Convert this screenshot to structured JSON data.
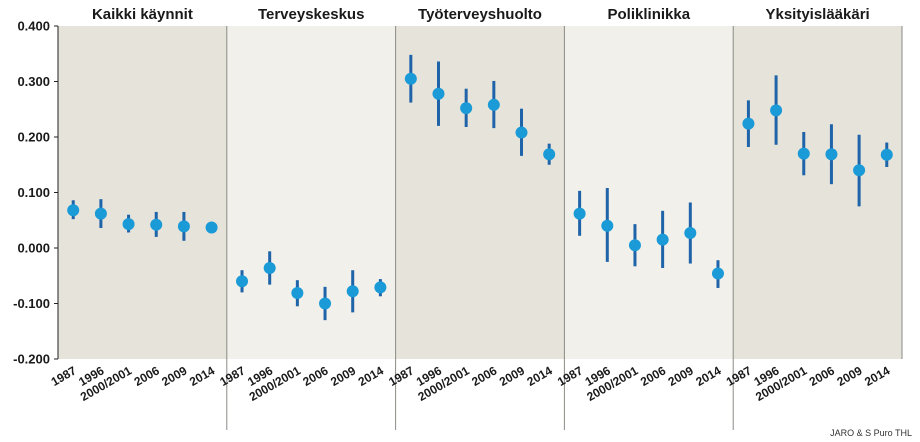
{
  "chart_data": {
    "type": "scatter",
    "subtype": "point-with-error-bars, small multiples",
    "ylim": [
      -0.2,
      0.4
    ],
    "yticks": [
      "0.400",
      "0.300",
      "0.200",
      "0.100",
      "0.000",
      "-0.100",
      "-0.200"
    ],
    "ytick_values": [
      0.4,
      0.3,
      0.2,
      0.1,
      0.0,
      -0.1,
      -0.2
    ],
    "categories": [
      "1987",
      "1996",
      "2000/2001",
      "2006",
      "2009",
      "2014"
    ],
    "grid": false,
    "panels": [
      {
        "title": "Kaikki käynnit",
        "background": "#e6e3da",
        "values": [
          0.068,
          0.062,
          0.043,
          0.042,
          0.039,
          0.037
        ],
        "lower": [
          0.052,
          0.036,
          0.028,
          0.02,
          0.013,
          0.03
        ],
        "upper": [
          0.086,
          0.088,
          0.06,
          0.065,
          0.065,
          0.045
        ]
      },
      {
        "title": "Terveyskeskus",
        "background": "#f1f0ea",
        "values": [
          -0.06,
          -0.036,
          -0.081,
          -0.1,
          -0.078,
          -0.071
        ],
        "lower": [
          -0.08,
          -0.066,
          -0.105,
          -0.13,
          -0.116,
          -0.087
        ],
        "upper": [
          -0.04,
          -0.006,
          -0.058,
          -0.07,
          -0.04,
          -0.056
        ]
      },
      {
        "title": "Työterveyshuolto",
        "background": "#e6e3da",
        "values": [
          0.305,
          0.278,
          0.252,
          0.258,
          0.208,
          0.169
        ],
        "lower": [
          0.262,
          0.22,
          0.218,
          0.216,
          0.166,
          0.15
        ],
        "upper": [
          0.348,
          0.336,
          0.287,
          0.301,
          0.251,
          0.188
        ]
      },
      {
        "title": "Poliklinikka",
        "background": "#f1f0ea",
        "values": [
          0.062,
          0.04,
          0.005,
          0.015,
          0.027,
          -0.046
        ],
        "lower": [
          0.022,
          -0.025,
          -0.033,
          -0.036,
          -0.028,
          -0.072
        ],
        "upper": [
          0.103,
          0.108,
          0.043,
          0.067,
          0.082,
          -0.022
        ]
      },
      {
        "title": "Yksityislääkäri",
        "background": "#e6e3da",
        "values": [
          0.224,
          0.248,
          0.17,
          0.169,
          0.14,
          0.168
        ],
        "lower": [
          0.182,
          0.186,
          0.131,
          0.115,
          0.075,
          0.146
        ],
        "upper": [
          0.266,
          0.311,
          0.209,
          0.223,
          0.204,
          0.19
        ]
      }
    ],
    "colors": {
      "marker": "#1a9ad6",
      "error_bar": "#1f63a8",
      "divider": "#8a8a86",
      "axis": "#222222"
    }
  },
  "credit": "JARO & S Puro THL"
}
